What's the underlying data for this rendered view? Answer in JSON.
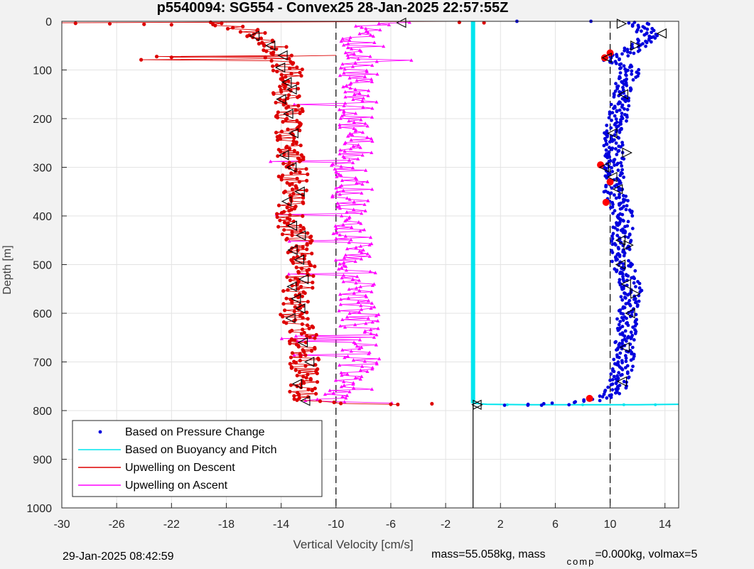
{
  "chart_data": {
    "type": "scatter",
    "title": "p5540094: SG554 - Convex25 28-Jan-2025 22:57:55Z",
    "xlabel": "Vertical Velocity [cm/s]",
    "ylabel": "Depth [m]",
    "xlim": [
      -30,
      15
    ],
    "ylim": [
      0,
      1000
    ],
    "y_reversed": true,
    "xticks": [
      -30,
      -26,
      -22,
      -18,
      -14,
      -10,
      -6,
      -2,
      2,
      6,
      10,
      14
    ],
    "yticks": [
      0,
      100,
      200,
      300,
      400,
      500,
      600,
      700,
      800,
      900,
      1000
    ],
    "grid": true,
    "legend_position": "bottom-left",
    "reference_lines": [
      {
        "x": -10,
        "style": "dashed"
      },
      {
        "x": 10,
        "style": "dashed"
      },
      {
        "x": 0,
        "style": "solid"
      }
    ],
    "series": [
      {
        "name": "Based on Pressure Change",
        "color": "#0000dd",
        "marker": "dot",
        "profile": [
          [
            0,
            12.0
          ],
          [
            30,
            12.8
          ],
          [
            60,
            11.5
          ],
          [
            80,
            10.0
          ],
          [
            100,
            11.5
          ],
          [
            150,
            10.8
          ],
          [
            200,
            10.5
          ],
          [
            250,
            10.2
          ],
          [
            300,
            10.3
          ],
          [
            350,
            10.3
          ],
          [
            400,
            11.0
          ],
          [
            450,
            10.8
          ],
          [
            500,
            10.9
          ],
          [
            550,
            11.6
          ],
          [
            600,
            11.3
          ],
          [
            650,
            11.1
          ],
          [
            700,
            11.0
          ],
          [
            750,
            10.6
          ],
          [
            770,
            10.0
          ],
          [
            780,
            8.5
          ],
          [
            785,
            6.0
          ],
          [
            788,
            3.0
          ]
        ]
      },
      {
        "name": "Based on Buoyancy and Pitch",
        "color": "#00e5ee",
        "marker": "line",
        "profile": [
          [
            0,
            0.0
          ],
          [
            785,
            0.0
          ],
          [
            787,
            1.0
          ],
          [
            788,
            4.0
          ],
          [
            788,
            8.0
          ],
          [
            788,
            12.0
          ],
          [
            787,
            15.0
          ]
        ]
      },
      {
        "name": "Upwelling on Descent",
        "color": "#dd0000",
        "marker": "dot",
        "profile": [
          [
            0,
            -20.0
          ],
          [
            20,
            -16.0
          ],
          [
            40,
            -15.0
          ],
          [
            60,
            -14.5
          ],
          [
            80,
            -14.0
          ],
          [
            100,
            -13.5
          ],
          [
            150,
            -13.6
          ],
          [
            200,
            -13.4
          ],
          [
            250,
            -13.5
          ],
          [
            300,
            -13.2
          ],
          [
            350,
            -13.0
          ],
          [
            400,
            -13.4
          ],
          [
            450,
            -12.8
          ],
          [
            500,
            -12.6
          ],
          [
            550,
            -12.8
          ],
          [
            600,
            -13.0
          ],
          [
            650,
            -12.4
          ],
          [
            700,
            -12.3
          ],
          [
            750,
            -12.4
          ],
          [
            780,
            -12.2
          ],
          [
            786,
            -9.0
          ],
          [
            788,
            -4.0
          ]
        ]
      },
      {
        "name": "Upwelling on Ascent",
        "color": "#ff00ff",
        "marker": "triangle",
        "profile": [
          [
            0,
            -4.0
          ],
          [
            5,
            -7.0
          ],
          [
            20,
            -7.5
          ],
          [
            50,
            -8.5
          ],
          [
            100,
            -8.5
          ],
          [
            150,
            -8.4
          ],
          [
            200,
            -8.6
          ],
          [
            250,
            -8.7
          ],
          [
            300,
            -8.9
          ],
          [
            350,
            -8.8
          ],
          [
            400,
            -8.9
          ],
          [
            450,
            -8.7
          ],
          [
            500,
            -8.6
          ],
          [
            550,
            -8.5
          ],
          [
            600,
            -8.3
          ],
          [
            650,
            -8.1
          ],
          [
            700,
            -8.3
          ],
          [
            750,
            -8.6
          ],
          [
            770,
            -9.5
          ],
          [
            780,
            -12.0
          ],
          [
            787,
            -4.0
          ]
        ]
      }
    ]
  },
  "footer": {
    "timestamp": "29-Jan-2025 08:42:59",
    "params_main": "mass=55.058kg, mass",
    "params_sub": "comp",
    "params_tail": "=0.000kg, volmax=5"
  },
  "colors": {
    "background": "#f2f2f2",
    "axes_bg": "#ffffff",
    "grid": "#e3e3e3",
    "markers_edge": "#000000",
    "fast_marker": "#ff0000"
  }
}
